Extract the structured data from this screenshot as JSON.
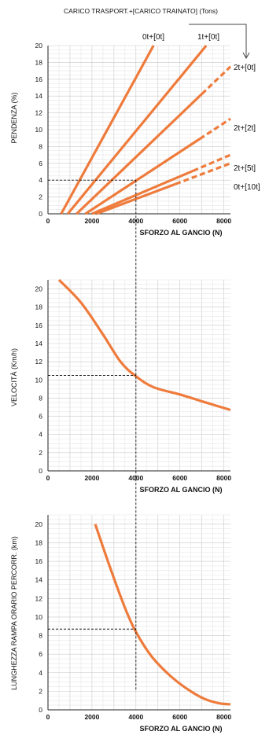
{
  "header": {
    "legend_title": "CARICO TRASPORT.+[CARICO TRAINATO] (Tons)"
  },
  "colors": {
    "curve": "#ee7b3c",
    "grid_major": "#c9c9c9",
    "grid_minor": "#e6e6e6",
    "axis": "#222222",
    "guide": "#111111"
  },
  "chart_data": [
    {
      "type": "line",
      "title": "",
      "xlabel": "SFORZO AL GANCIO (N)",
      "ylabel": "PENDENZA (%)",
      "xlim": [
        0,
        8300
      ],
      "ylim": [
        0,
        20
      ],
      "x_ticks": [
        0,
        2000,
        4000,
        6000,
        8000
      ],
      "y_ticks": [
        0,
        2,
        4,
        6,
        8,
        10,
        12,
        14,
        16,
        18,
        20
      ],
      "grid": true,
      "series": [
        {
          "name": "0t+[0t]",
          "x": [
            600,
            4800
          ],
          "y": [
            0,
            20
          ],
          "dashed_from_x": null
        },
        {
          "name": "1t+[0t]",
          "x": [
            900,
            7200
          ],
          "y": [
            0,
            20
          ],
          "dashed_from_x": null
        },
        {
          "name": "2t+[0t]",
          "x": [
            1300,
            8300
          ],
          "y": [
            0,
            17.5
          ],
          "dashed_from_x": 7000
        },
        {
          "name": "2t+[2t]",
          "x": [
            1700,
            8300
          ],
          "y": [
            0,
            11.3
          ],
          "dashed_from_x": 6900
        },
        {
          "name": "2t+[5t]",
          "x": [
            2000,
            8300
          ],
          "y": [
            0,
            7.0
          ],
          "dashed_from_x": 6600
        },
        {
          "name": "0t+[10t]",
          "x": [
            2200,
            8300
          ],
          "y": [
            0,
            6.0
          ],
          "dashed_from_x": 5800
        }
      ],
      "reference": {
        "x": 4000,
        "y": 4
      }
    },
    {
      "type": "line",
      "title": "",
      "xlabel": "SFORZO AL GANCIO (N)",
      "ylabel": "VELOCITÀ (Km/h)",
      "xlim": [
        0,
        8300
      ],
      "ylim": [
        0,
        21
      ],
      "x_ticks": [
        0,
        2000,
        4000,
        6000,
        8000
      ],
      "y_ticks": [
        0,
        2,
        4,
        6,
        8,
        10,
        12,
        14,
        16,
        18,
        20
      ],
      "grid": true,
      "series": [
        {
          "x": [
            500,
            1500,
            2500,
            3300,
            4000,
            4800,
            6000,
            7200,
            8300
          ],
          "y": [
            21,
            18.5,
            15,
            12,
            10.4,
            9.2,
            8.4,
            7.5,
            6.7
          ]
        }
      ],
      "reference": {
        "x": 4000,
        "y": 10.5
      }
    },
    {
      "type": "line",
      "title": "",
      "xlabel": "SFORZO AL GANCIO (N)",
      "ylabel": "LUNGHEZZA RAMPA ORARIO PERCORR. (km)",
      "xlim": [
        0,
        8300
      ],
      "ylim": [
        0,
        21
      ],
      "x_ticks": [
        0,
        2000,
        4000,
        6000,
        8000
      ],
      "y_ticks": [
        0,
        2,
        4,
        6,
        8,
        10,
        12,
        14,
        16,
        18,
        20
      ],
      "grid": true,
      "series": [
        {
          "x": [
            2150,
            2800,
            3500,
            4000,
            4700,
            5500,
            6300,
            7100,
            7800,
            8300
          ],
          "y": [
            20,
            15.5,
            11,
            8.4,
            5.8,
            3.8,
            2.3,
            1.2,
            0.7,
            0.6
          ]
        }
      ],
      "reference": {
        "x": 4000,
        "y": 8.7
      }
    }
  ]
}
